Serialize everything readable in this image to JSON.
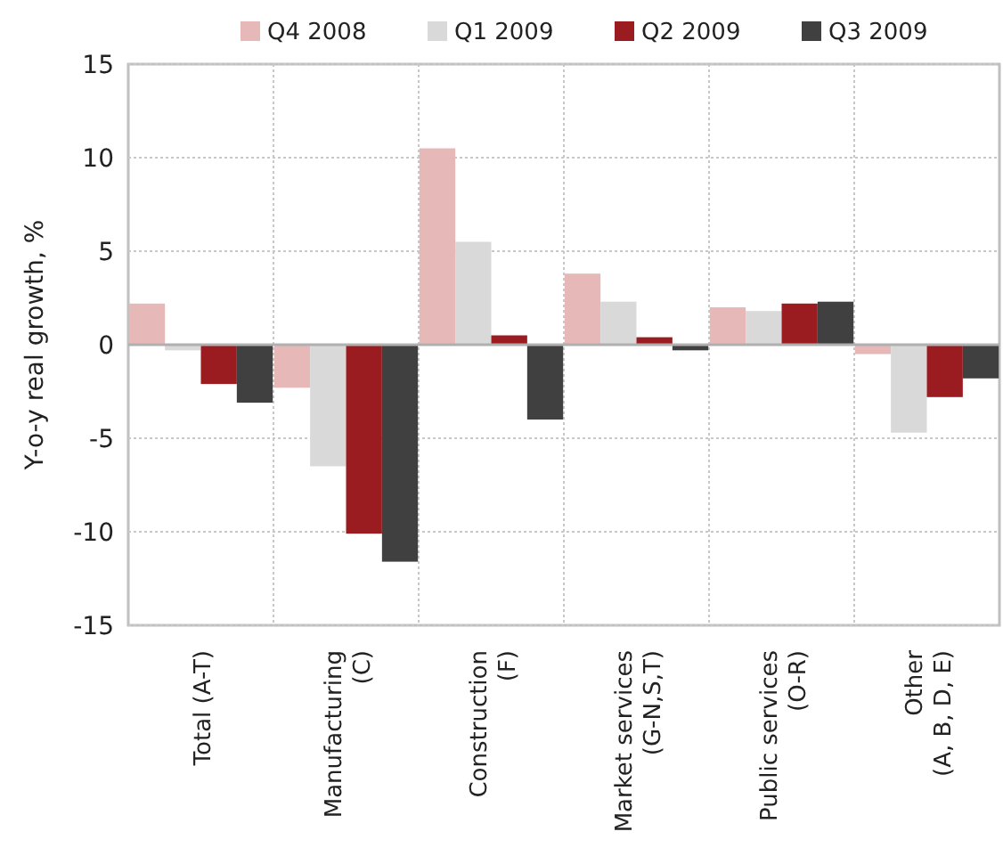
{
  "chart_data": {
    "type": "bar",
    "ylabel": "Y-o-y real growth, %",
    "categories": [
      "Total (A-T)",
      "Manufacturing (C)",
      "Construction (F)",
      "Market services (G-N,S,T)",
      "Public services (O-R)",
      "Other (A, B, D, E)"
    ],
    "series": [
      {
        "name": "Q4 2008",
        "color": "#e6b8b7",
        "values": [
          2.2,
          -2.3,
          10.5,
          3.8,
          2.0,
          -0.5
        ]
      },
      {
        "name": "Q1 2009",
        "color": "#d9d9d9",
        "values": [
          -0.3,
          -6.5,
          5.5,
          2.3,
          1.8,
          -4.7
        ]
      },
      {
        "name": "Q2 2009",
        "color": "#9b1c20",
        "values": [
          -2.1,
          -10.1,
          0.5,
          0.4,
          2.2,
          -2.8
        ]
      },
      {
        "name": "Q3 2009",
        "color": "#404040",
        "values": [
          -3.1,
          -11.6,
          -4.0,
          -0.3,
          2.3,
          -1.8
        ]
      }
    ],
    "ylim": [
      -15,
      15
    ],
    "yticks": [
      -15,
      -10,
      -5,
      0,
      5,
      10,
      15
    ],
    "grid": true,
    "legend": "top"
  }
}
